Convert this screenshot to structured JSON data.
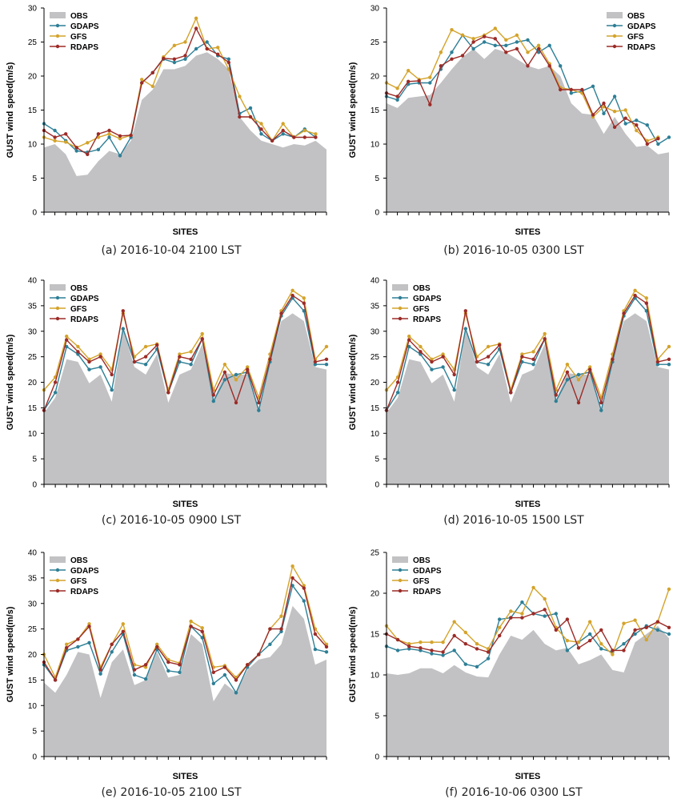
{
  "chart_data": [
    {
      "type": "line",
      "caption": "(a) 2016-10-04 2100 LST",
      "xlabel": "SITES",
      "ylabel": "GUST wind speed(m/s)",
      "ylim": [
        0,
        30
      ],
      "yticks": [
        0,
        5,
        10,
        15,
        20,
        25,
        30
      ],
      "grid": false,
      "legend_position": "top-left",
      "series": [
        {
          "name": "OBS",
          "style": "area",
          "color": "#c2c2c4",
          "values": [
            9.5,
            10,
            8.5,
            5.3,
            5.5,
            7.5,
            9,
            8.5,
            10.5,
            16.5,
            18,
            21,
            21,
            21.5,
            23,
            23.5,
            22.5,
            21,
            14,
            12,
            10.5,
            10,
            9.5,
            10,
            9.8,
            10.5,
            9.2
          ]
        },
        {
          "name": "GDAPS",
          "style": "line",
          "color": "#2d7f96",
          "values": [
            13,
            12,
            10.5,
            9,
            8.8,
            9.2,
            11,
            8.3,
            11,
            19,
            20.5,
            22.5,
            22,
            22.5,
            24,
            25,
            23,
            22.5,
            14.5,
            15.3,
            11.5,
            10.5,
            11.5,
            11,
            12.2,
            11
          ]
        },
        {
          "name": "GFS",
          "style": "line",
          "color": "#d4a32b",
          "values": [
            11,
            10.5,
            10.3,
            9.5,
            10.2,
            11,
            11.5,
            10.8,
            11.3,
            19.5,
            18.5,
            22.8,
            24.5,
            25,
            28.5,
            24,
            24.2,
            21,
            17,
            14,
            13,
            10.5,
            13,
            11,
            12,
            11.5
          ]
        },
        {
          "name": "RDAPS",
          "style": "line",
          "color": "#9c2b27",
          "values": [
            12,
            11,
            11.5,
            9.5,
            8.5,
            11.5,
            12,
            11.2,
            11.3,
            19,
            20.5,
            22.6,
            22.5,
            23,
            27,
            24,
            23.2,
            22,
            14,
            14,
            12.2,
            10.5,
            12,
            11,
            11,
            11
          ]
        }
      ]
    },
    {
      "type": "line",
      "caption": "(b) 2016-10-05 0300 LST",
      "xlabel": "SITES",
      "ylabel": "GUST wind speed(m/s)",
      "ylim": [
        0,
        30
      ],
      "yticks": [
        0,
        5,
        10,
        15,
        20,
        25,
        30
      ],
      "grid": false,
      "legend_position": "top-right",
      "series": [
        {
          "name": "OBS",
          "style": "area",
          "color": "#c2c2c4",
          "values": [
            16,
            15.3,
            16.8,
            17,
            17.2,
            19,
            21,
            22.8,
            24,
            22.5,
            24,
            23.5,
            22.5,
            21.5,
            21,
            21.5,
            20,
            16,
            14.5,
            14.3,
            11.5,
            14,
            11.5,
            9.6,
            9.8,
            8.5,
            8.8
          ]
        },
        {
          "name": "GDAPS",
          "style": "line",
          "color": "#2d7f96",
          "values": [
            17,
            16.5,
            18.8,
            19,
            19,
            21,
            23.5,
            26,
            24,
            25,
            24.5,
            24.5,
            25,
            25.3,
            23.5,
            24.5,
            21.5,
            17.5,
            17.8,
            18.5,
            14.5,
            17,
            13,
            13.5,
            12.8,
            10,
            11
          ]
        },
        {
          "name": "GFS",
          "style": "line",
          "color": "#d4a32b",
          "values": [
            19,
            18.2,
            20.8,
            19.5,
            19.8,
            23.5,
            26.8,
            26,
            25.5,
            26,
            27,
            25.3,
            26,
            23.5,
            24.5,
            21.8,
            18.3,
            18,
            17.5,
            14,
            15.5,
            14.8,
            15,
            12,
            10.5,
            11
          ]
        },
        {
          "name": "RDAPS",
          "style": "line",
          "color": "#9c2b27",
          "values": [
            17.5,
            17,
            19.2,
            19.3,
            15.8,
            21.5,
            22.5,
            23,
            25,
            25.8,
            25.5,
            23.5,
            24,
            21.5,
            24,
            21.5,
            18,
            18,
            18,
            14.3,
            16,
            12.5,
            13.8,
            12.8,
            10,
            10.8
          ]
        }
      ]
    },
    {
      "type": "line",
      "caption": "(c) 2016-10-05 0900 LST",
      "xlabel": "SITES",
      "ylabel": "GUST wind speed(m/s)",
      "ylim": [
        0,
        40
      ],
      "yticks": [
        0,
        5,
        10,
        15,
        20,
        25,
        30,
        35,
        40
      ],
      "grid": false,
      "legend_position": "top-left",
      "series": [
        {
          "name": "OBS",
          "style": "area",
          "color": "#c2c2c4",
          "values": [
            14,
            17,
            24.5,
            24,
            19.8,
            21.5,
            16.2,
            30.5,
            23,
            21.5,
            25.5,
            16,
            21.5,
            22.5,
            27.5,
            16.5,
            21.8,
            21.5,
            21.5,
            14.5,
            24,
            32,
            33.5,
            32,
            23,
            22.5
          ]
        },
        {
          "name": "GDAPS",
          "style": "line",
          "color": "#2d7f96",
          "values": [
            14.5,
            18,
            27,
            25.5,
            22.5,
            23,
            18.5,
            30.5,
            24,
            23.5,
            26.5,
            18,
            24,
            23.5,
            28.5,
            16.3,
            20.5,
            21.5,
            22,
            14.5,
            24,
            33,
            36.5,
            34,
            23.5,
            23.5
          ]
        },
        {
          "name": "GFS",
          "style": "line",
          "color": "#d4a32b",
          "values": [
            18.5,
            21,
            29,
            27,
            24.5,
            25.5,
            22.5,
            33.5,
            25,
            27,
            27.5,
            18.5,
            25.5,
            26,
            29.5,
            18.5,
            23.5,
            20.5,
            23,
            17,
            25.5,
            34,
            38,
            36.5,
            24.5,
            27
          ]
        },
        {
          "name": "RDAPS",
          "style": "line",
          "color": "#9c2b27",
          "values": [
            14.5,
            20,
            28.3,
            26,
            24,
            25,
            21.5,
            34,
            24,
            25,
            27.3,
            18,
            25,
            24.5,
            28.5,
            17.5,
            22,
            16,
            22.5,
            16,
            24.5,
            33.5,
            37,
            35.5,
            24,
            24.5
          ]
        }
      ]
    },
    {
      "type": "line",
      "caption": "(d) 2016-10-05 1500 LST",
      "xlabel": "SITES",
      "ylabel": "GUST wind speed(m/s)",
      "ylim": [
        0,
        40
      ],
      "yticks": [
        0,
        5,
        10,
        15,
        20,
        25,
        30,
        35,
        40
      ],
      "grid": false,
      "legend_position": "top-left",
      "series": [
        {
          "name": "OBS",
          "style": "area",
          "color": "#c2c2c4",
          "values": [
            14,
            17,
            24.5,
            24,
            19.8,
            21.5,
            16.2,
            30.5,
            23,
            21.5,
            25.5,
            16,
            21.5,
            22.5,
            27.5,
            16.5,
            21.8,
            21.5,
            21.5,
            14.5,
            24,
            32,
            33.5,
            32,
            23,
            22.5
          ]
        },
        {
          "name": "GDAPS",
          "style": "line",
          "color": "#2d7f96",
          "values": [
            14.5,
            18,
            27,
            25.5,
            22.5,
            23,
            18.5,
            30.5,
            24,
            23.5,
            26.5,
            18,
            24,
            23.5,
            28.5,
            16.3,
            20.5,
            21.5,
            22,
            14.5,
            24,
            33,
            36.5,
            34,
            23.5,
            23.5
          ]
        },
        {
          "name": "GFS",
          "style": "line",
          "color": "#d4a32b",
          "values": [
            18.5,
            21,
            29,
            27,
            24.5,
            25.5,
            22.5,
            33.5,
            25,
            27,
            27.5,
            18.5,
            25.5,
            26,
            29.5,
            18.5,
            23.5,
            20.5,
            23,
            17,
            25.5,
            34,
            38,
            36.5,
            24.5,
            27
          ]
        },
        {
          "name": "RDAPS",
          "style": "line",
          "color": "#9c2b27",
          "values": [
            14.5,
            20,
            28.3,
            26,
            24,
            25,
            21.5,
            34,
            24,
            25,
            27.3,
            18,
            25,
            24.5,
            28.5,
            17.5,
            22,
            16,
            22.5,
            16,
            24.5,
            33.5,
            37,
            35.5,
            24,
            24.5
          ]
        }
      ]
    },
    {
      "type": "line",
      "caption": "(e) 2016-10-05 2100 LST",
      "xlabel": "SITES",
      "ylabel": "GUST wind speed(m/s)",
      "ylim": [
        0,
        40
      ],
      "yticks": [
        0,
        5,
        10,
        15,
        20,
        25,
        30,
        35,
        40
      ],
      "grid": false,
      "legend_position": "top-left",
      "series": [
        {
          "name": "OBS",
          "style": "area",
          "color": "#c2c2c4",
          "values": [
            14.5,
            12.5,
            16,
            20.5,
            20,
            11.5,
            18.5,
            21,
            14,
            15,
            20.5,
            15.5,
            16,
            24,
            22,
            10.8,
            14.3,
            12.5,
            17,
            19,
            19.5,
            22,
            29.5,
            27,
            18,
            19
          ]
        },
        {
          "name": "GDAPS",
          "style": "line",
          "color": "#2d7f96",
          "values": [
            18,
            15,
            20.8,
            21.5,
            22.3,
            16.2,
            20.5,
            24,
            16,
            15.2,
            21,
            16.8,
            16.5,
            25.5,
            23.3,
            14.3,
            16,
            12.5,
            17.5,
            20,
            22,
            24.5,
            33.5,
            30.5,
            21,
            20.5
          ]
        },
        {
          "name": "GFS",
          "style": "line",
          "color": "#d4a32b",
          "values": [
            20,
            15.5,
            22,
            23,
            26,
            17.5,
            22,
            26,
            18,
            17.5,
            22,
            19,
            18.3,
            26.5,
            25.2,
            17.5,
            17.8,
            15.5,
            18,
            20,
            25,
            27.5,
            37.3,
            33.5,
            25,
            22
          ]
        },
        {
          "name": "RDAPS",
          "style": "line",
          "color": "#9c2b27",
          "values": [
            18.5,
            15,
            21.3,
            23,
            25.5,
            17,
            22,
            24.5,
            17,
            18,
            21.5,
            18.5,
            18,
            25.5,
            24.5,
            16.5,
            17.5,
            15,
            18,
            20,
            25,
            25,
            35,
            33,
            24,
            21.5
          ]
        }
      ]
    },
    {
      "type": "line",
      "caption": "(f) 2016-10-06 0300 LST",
      "xlabel": "SITES",
      "ylabel": "GUST wind speed(m/s)",
      "ylim": [
        0,
        25
      ],
      "yticks": [
        0,
        5,
        10,
        15,
        20,
        25
      ],
      "grid": false,
      "legend_position": "top-left",
      "series": [
        {
          "name": "OBS",
          "style": "area",
          "color": "#c2c2c4",
          "values": [
            10.2,
            10,
            10.2,
            10.8,
            10.8,
            10.2,
            11.2,
            10.3,
            9.8,
            9.7,
            12.5,
            14.8,
            14.3,
            15.5,
            13.8,
            13,
            13.3,
            11.3,
            11.8,
            12.5,
            10.6,
            10.3,
            14,
            15,
            16,
            14.5
          ]
        },
        {
          "name": "GDAPS",
          "style": "line",
          "color": "#2d7f96",
          "values": [
            13.5,
            13,
            13.2,
            13,
            12.6,
            12.4,
            13,
            11.3,
            11,
            12,
            16.8,
            17,
            18.9,
            17.5,
            17.2,
            17.5,
            13,
            14,
            15,
            13.2,
            12.8,
            13.8,
            15,
            16,
            15.5,
            15
          ]
        },
        {
          "name": "GFS",
          "style": "line",
          "color": "#d4a32b",
          "values": [
            16,
            14.3,
            13.8,
            14,
            14,
            14,
            16.5,
            15.2,
            13.8,
            13.2,
            15.8,
            17.8,
            17.5,
            20.7,
            19.3,
            15.8,
            14.2,
            14,
            16.5,
            13.8,
            12.5,
            16.3,
            16.7,
            14.3,
            16.5,
            20.5
          ]
        },
        {
          "name": "RDAPS",
          "style": "line",
          "color": "#9c2b27",
          "values": [
            15,
            14.3,
            13.5,
            13.3,
            13,
            12.8,
            14.8,
            13.8,
            13.2,
            12.8,
            14.8,
            17,
            17,
            17.5,
            18,
            15.5,
            16.8,
            13.3,
            14.2,
            15.5,
            13,
            13,
            15.5,
            15.8,
            16.5,
            15.8
          ]
        }
      ]
    }
  ]
}
